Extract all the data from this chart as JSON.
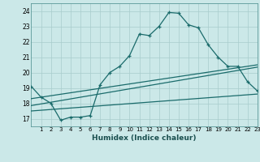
{
  "xlabel": "Humidex (Indice chaleur)",
  "bg_color": "#cbe8e8",
  "grid_color": "#a8cccc",
  "line_color": "#1a6b6b",
  "spine_color": "#5a9999",
  "xlim": [
    0,
    23
  ],
  "ylim": [
    16.5,
    24.5
  ],
  "yticks": [
    17,
    18,
    19,
    20,
    21,
    22,
    23,
    24
  ],
  "xticks": [
    1,
    2,
    3,
    4,
    5,
    6,
    7,
    8,
    9,
    10,
    11,
    12,
    13,
    14,
    15,
    16,
    17,
    18,
    19,
    20,
    21,
    22,
    23
  ],
  "main_x": [
    0,
    1,
    2,
    3,
    4,
    5,
    6,
    7,
    8,
    9,
    10,
    11,
    12,
    13,
    14,
    15,
    16,
    17,
    18,
    19,
    20,
    21,
    22,
    23
  ],
  "main_y": [
    19.1,
    18.4,
    18.0,
    16.9,
    17.1,
    17.1,
    17.2,
    19.2,
    20.0,
    20.4,
    21.1,
    22.5,
    22.4,
    23.0,
    23.9,
    23.85,
    23.1,
    22.9,
    21.8,
    21.0,
    20.4,
    20.4,
    19.4,
    18.8
  ],
  "line2_x": [
    0,
    23
  ],
  "line2_y": [
    18.3,
    20.5
  ],
  "line3_x": [
    0,
    23
  ],
  "line3_y": [
    17.85,
    20.35
  ],
  "line4_x": [
    0,
    23
  ],
  "line4_y": [
    17.5,
    18.6
  ]
}
